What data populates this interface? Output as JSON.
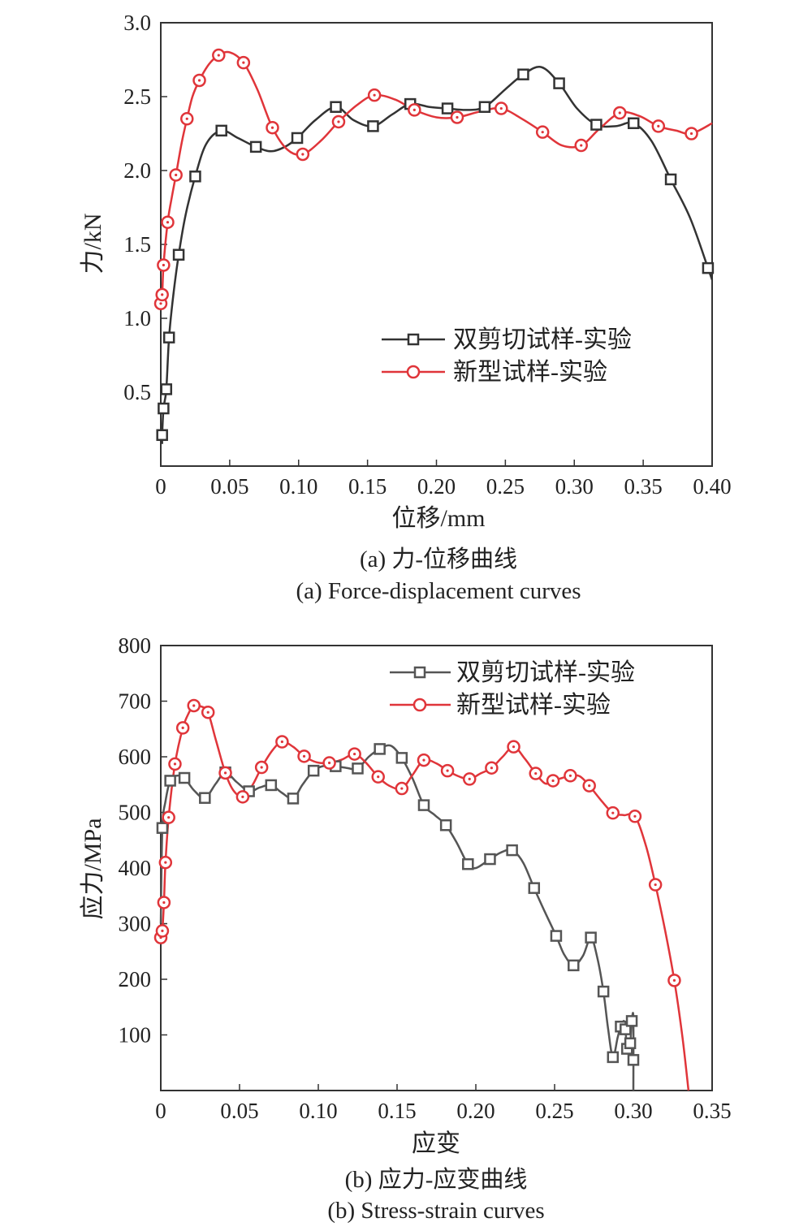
{
  "charts": [
    {
      "caption_cn": "(a) 力-位移曲线",
      "caption_en": "(a) Force-displacement curves",
      "xlabel": "位移/mm",
      "ylabel": "力/kN",
      "xlim": [
        0,
        0.4
      ],
      "ylim": [
        0,
        3.0
      ],
      "x_ticks": [
        "0",
        "0.05",
        "0.10",
        "0.15",
        "0.20",
        "0.25",
        "0.30",
        "0.35",
        "0.40"
      ],
      "y_ticks": [
        "0.5",
        "1.0",
        "1.5",
        "2.0",
        "2.5",
        "3.0"
      ],
      "legend": [
        "双剪切试样-实验",
        "新型试样-实验"
      ]
    },
    {
      "caption_cn": "(b) 应力-应变曲线",
      "caption_en": "(b) Stress-strain curves",
      "xlabel": "应变",
      "ylabel": "应力/MPa",
      "xlim": [
        0,
        0.35
      ],
      "ylim": [
        0,
        800
      ],
      "x_ticks": [
        "0",
        "0.05",
        "0.10",
        "0.15",
        "0.20",
        "0.25",
        "0.30",
        "0.35"
      ],
      "y_ticks": [
        "100",
        "200",
        "300",
        "400",
        "500",
        "600",
        "700",
        "800"
      ],
      "legend": [
        "双剪切试样-实验",
        "新型试样-实验"
      ]
    }
  ],
  "chart_data": [
    {
      "type": "line",
      "xlabel": "位移/mm",
      "ylabel": "力/kN",
      "xlim": [
        0,
        0.4
      ],
      "ylim": [
        0,
        3.0
      ],
      "x_ticks": [
        0,
        0.05,
        0.1,
        0.15,
        0.2,
        0.25,
        0.3,
        0.35,
        0.4
      ],
      "y_ticks": [
        0.5,
        1.0,
        1.5,
        2.0,
        2.5,
        3.0
      ],
      "grid": false,
      "legend_position": "lower-right",
      "series": [
        {
          "name": "双剪切试样-实验",
          "color": "#333333",
          "marker": "square",
          "x": [
            0.001,
            0.002,
            0.004,
            0.006,
            0.013,
            0.025,
            0.044,
            0.069,
            0.099,
            0.127,
            0.154,
            0.181,
            0.208,
            0.235,
            0.263,
            0.289,
            0.316,
            0.343,
            0.37,
            0.397
          ],
          "y": [
            0.21,
            0.39,
            0.52,
            0.87,
            1.43,
            1.96,
            2.27,
            2.16,
            2.22,
            2.43,
            2.3,
            2.45,
            2.42,
            2.43,
            2.65,
            2.59,
            2.31,
            2.32,
            1.94,
            1.34
          ],
          "curve": [
            [
              0.001,
              0.15
            ],
            [
              0.001,
              0.21
            ],
            [
              0.002,
              0.39
            ],
            [
              0.004,
              0.52
            ],
            [
              0.006,
              0.87
            ],
            [
              0.009,
              1.15
            ],
            [
              0.013,
              1.43
            ],
            [
              0.018,
              1.7
            ],
            [
              0.025,
              1.96
            ],
            [
              0.033,
              2.18
            ],
            [
              0.044,
              2.27
            ],
            [
              0.056,
              2.22
            ],
            [
              0.069,
              2.16
            ],
            [
              0.08,
              2.13
            ],
            [
              0.09,
              2.16
            ],
            [
              0.099,
              2.22
            ],
            [
              0.112,
              2.34
            ],
            [
              0.127,
              2.43
            ],
            [
              0.14,
              2.34
            ],
            [
              0.154,
              2.3
            ],
            [
              0.168,
              2.38
            ],
            [
              0.181,
              2.45
            ],
            [
              0.195,
              2.43
            ],
            [
              0.208,
              2.42
            ],
            [
              0.222,
              2.41
            ],
            [
              0.235,
              2.43
            ],
            [
              0.25,
              2.55
            ],
            [
              0.263,
              2.65
            ],
            [
              0.276,
              2.7
            ],
            [
              0.289,
              2.59
            ],
            [
              0.302,
              2.42
            ],
            [
              0.316,
              2.31
            ],
            [
              0.33,
              2.3
            ],
            [
              0.343,
              2.32
            ],
            [
              0.356,
              2.2
            ],
            [
              0.37,
              1.94
            ],
            [
              0.384,
              1.68
            ],
            [
              0.397,
              1.34
            ],
            [
              0.4,
              1.26
            ]
          ]
        },
        {
          "name": "新型试样-实验",
          "color": "#e0353a",
          "marker": "circle",
          "x": [
            0.0,
            0.001,
            0.002,
            0.005,
            0.011,
            0.019,
            0.028,
            0.042,
            0.06,
            0.081,
            0.103,
            0.129,
            0.155,
            0.184,
            0.215,
            0.247,
            0.277,
            0.305,
            0.333,
            0.361,
            0.385
          ],
          "y": [
            1.1,
            1.16,
            1.36,
            1.65,
            1.97,
            2.35,
            2.61,
            2.78,
            2.73,
            2.29,
            2.11,
            2.33,
            2.51,
            2.41,
            2.36,
            2.42,
            2.26,
            2.17,
            2.39,
            2.3,
            2.25
          ],
          "curve": [
            [
              0.0,
              1.1
            ],
            [
              0.001,
              1.16
            ],
            [
              0.002,
              1.36
            ],
            [
              0.005,
              1.65
            ],
            [
              0.008,
              1.82
            ],
            [
              0.011,
              1.97
            ],
            [
              0.015,
              2.18
            ],
            [
              0.019,
              2.35
            ],
            [
              0.023,
              2.5
            ],
            [
              0.028,
              2.61
            ],
            [
              0.035,
              2.72
            ],
            [
              0.042,
              2.78
            ],
            [
              0.05,
              2.8
            ],
            [
              0.06,
              2.73
            ],
            [
              0.07,
              2.55
            ],
            [
              0.081,
              2.29
            ],
            [
              0.092,
              2.14
            ],
            [
              0.103,
              2.11
            ],
            [
              0.116,
              2.2
            ],
            [
              0.129,
              2.33
            ],
            [
              0.142,
              2.44
            ],
            [
              0.155,
              2.51
            ],
            [
              0.17,
              2.48
            ],
            [
              0.184,
              2.41
            ],
            [
              0.2,
              2.36
            ],
            [
              0.215,
              2.36
            ],
            [
              0.232,
              2.4
            ],
            [
              0.247,
              2.42
            ],
            [
              0.262,
              2.35
            ],
            [
              0.277,
              2.26
            ],
            [
              0.291,
              2.17
            ],
            [
              0.305,
              2.17
            ],
            [
              0.318,
              2.28
            ],
            [
              0.333,
              2.39
            ],
            [
              0.347,
              2.37
            ],
            [
              0.361,
              2.3
            ],
            [
              0.374,
              2.27
            ],
            [
              0.385,
              2.25
            ],
            [
              0.4,
              2.32
            ]
          ]
        }
      ]
    },
    {
      "type": "line",
      "xlabel": "应变",
      "ylabel": "应力/MPa",
      "xlim": [
        0,
        0.35
      ],
      "ylim": [
        0,
        800
      ],
      "x_ticks": [
        0,
        0.05,
        0.1,
        0.15,
        0.2,
        0.25,
        0.3,
        0.35
      ],
      "y_ticks": [
        100,
        200,
        300,
        400,
        500,
        600,
        700,
        800
      ],
      "grid": false,
      "legend_position": "top-right",
      "series": [
        {
          "name": "双剪切试样-实验",
          "color": "#555555",
          "marker": "square",
          "x": [
            0.001,
            0.006,
            0.015,
            0.028,
            0.041,
            0.056,
            0.07,
            0.084,
            0.097,
            0.111,
            0.125,
            0.139,
            0.153,
            0.167,
            0.181,
            0.195,
            0.209,
            0.223,
            0.237,
            0.251,
            0.262,
            0.273,
            0.281,
            0.287,
            0.292,
            0.295,
            0.296,
            0.298,
            0.299,
            0.3
          ],
          "y": [
            472,
            557,
            562,
            526,
            572,
            538,
            549,
            525,
            575,
            583,
            579,
            614,
            598,
            513,
            477,
            407,
            416,
            432,
            364,
            278,
            225,
            275,
            178,
            60,
            115,
            110,
            75,
            85,
            125,
            55
          ],
          "curve": [
            [
              0.0,
              300
            ],
            [
              0.001,
              472
            ],
            [
              0.003,
              520
            ],
            [
              0.006,
              557
            ],
            [
              0.01,
              566
            ],
            [
              0.015,
              562
            ],
            [
              0.021,
              540
            ],
            [
              0.028,
              526
            ],
            [
              0.035,
              552
            ],
            [
              0.041,
              572
            ],
            [
              0.048,
              555
            ],
            [
              0.056,
              538
            ],
            [
              0.063,
              545
            ],
            [
              0.07,
              549
            ],
            [
              0.077,
              535
            ],
            [
              0.084,
              525
            ],
            [
              0.09,
              550
            ],
            [
              0.097,
              575
            ],
            [
              0.104,
              584
            ],
            [
              0.111,
              583
            ],
            [
              0.118,
              580
            ],
            [
              0.125,
              579
            ],
            [
              0.132,
              600
            ],
            [
              0.139,
              614
            ],
            [
              0.146,
              620
            ],
            [
              0.153,
              598
            ],
            [
              0.16,
              560
            ],
            [
              0.167,
              513
            ],
            [
              0.174,
              495
            ],
            [
              0.181,
              477
            ],
            [
              0.188,
              445
            ],
            [
              0.195,
              407
            ],
            [
              0.2,
              400
            ],
            [
              0.209,
              416
            ],
            [
              0.216,
              428
            ],
            [
              0.223,
              432
            ],
            [
              0.23,
              410
            ],
            [
              0.237,
              364
            ],
            [
              0.244,
              320
            ],
            [
              0.251,
              278
            ],
            [
              0.256,
              245
            ],
            [
              0.262,
              225
            ],
            [
              0.268,
              242
            ],
            [
              0.273,
              275
            ],
            [
              0.277,
              240
            ],
            [
              0.281,
              178
            ],
            [
              0.284,
              110
            ],
            [
              0.287,
              60
            ],
            [
              0.29,
              95
            ],
            [
              0.292,
              115
            ],
            [
              0.294,
              125
            ],
            [
              0.295,
              110
            ],
            [
              0.296,
              75
            ],
            [
              0.298,
              85
            ],
            [
              0.299,
              125
            ],
            [
              0.3,
              130
            ],
            [
              0.3,
              0
            ]
          ]
        },
        {
          "name": "新型试样-实验",
          "color": "#e0353a",
          "marker": "circle",
          "x": [
            0.0,
            0.001,
            0.002,
            0.003,
            0.005,
            0.009,
            0.014,
            0.021,
            0.03,
            0.041,
            0.052,
            0.064,
            0.077,
            0.091,
            0.107,
            0.123,
            0.138,
            0.153,
            0.167,
            0.182,
            0.196,
            0.21,
            0.224,
            0.238,
            0.249,
            0.26,
            0.272,
            0.287,
            0.301,
            0.314,
            0.326
          ],
          "y": [
            275,
            287,
            338,
            410,
            491,
            587,
            652,
            692,
            680,
            571,
            528,
            581,
            627,
            601,
            589,
            605,
            564,
            543,
            594,
            575,
            560,
            580,
            618,
            570,
            557,
            566,
            548,
            499,
            493,
            370,
            198
          ],
          "curve": [
            [
              0.0,
              275
            ],
            [
              0.001,
              287
            ],
            [
              0.002,
              338
            ],
            [
              0.003,
              410
            ],
            [
              0.005,
              491
            ],
            [
              0.009,
              587
            ],
            [
              0.014,
              652
            ],
            [
              0.018,
              680
            ],
            [
              0.021,
              692
            ],
            [
              0.026,
              690
            ],
            [
              0.03,
              680
            ],
            [
              0.035,
              630
            ],
            [
              0.041,
              571
            ],
            [
              0.046,
              540
            ],
            [
              0.052,
              528
            ],
            [
              0.058,
              548
            ],
            [
              0.064,
              581
            ],
            [
              0.071,
              612
            ],
            [
              0.077,
              627
            ],
            [
              0.084,
              618
            ],
            [
              0.091,
              601
            ],
            [
              0.099,
              590
            ],
            [
              0.107,
              589
            ],
            [
              0.115,
              595
            ],
            [
              0.123,
              605
            ],
            [
              0.13,
              590
            ],
            [
              0.138,
              564
            ],
            [
              0.145,
              548
            ],
            [
              0.153,
              543
            ],
            [
              0.16,
              568
            ],
            [
              0.167,
              594
            ],
            [
              0.175,
              588
            ],
            [
              0.182,
              575
            ],
            [
              0.189,
              565
            ],
            [
              0.196,
              560
            ],
            [
              0.203,
              570
            ],
            [
              0.21,
              580
            ],
            [
              0.217,
              600
            ],
            [
              0.224,
              618
            ],
            [
              0.231,
              597
            ],
            [
              0.238,
              570
            ],
            [
              0.244,
              552
            ],
            [
              0.249,
              557
            ],
            [
              0.255,
              562
            ],
            [
              0.26,
              566
            ],
            [
              0.266,
              565
            ],
            [
              0.272,
              548
            ],
            [
              0.28,
              520
            ],
            [
              0.287,
              499
            ],
            [
              0.294,
              495
            ],
            [
              0.301,
              493
            ],
            [
              0.308,
              440
            ],
            [
              0.314,
              370
            ],
            [
              0.32,
              290
            ],
            [
              0.326,
              198
            ],
            [
              0.331,
              100
            ],
            [
              0.335,
              0
            ]
          ]
        }
      ]
    }
  ]
}
